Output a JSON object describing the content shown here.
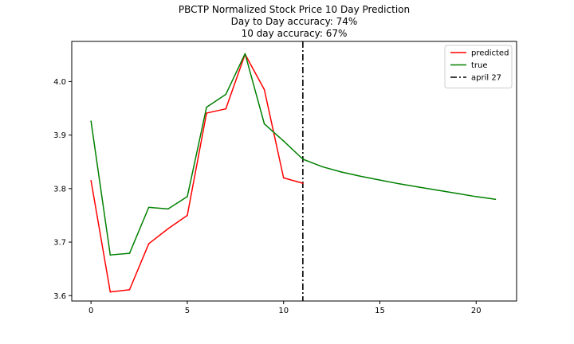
{
  "chart_data": {
    "type": "line",
    "title": [
      "PBCTP Normalized Stock Price 10 Day Prediction",
      "Day to Day accuracy: 74%",
      "10 day accuracy: 67%"
    ],
    "xlabel": "",
    "ylabel": "",
    "xlim": [
      -1,
      22.1
    ],
    "ylim": [
      3.59,
      4.075
    ],
    "xticks": [
      0,
      5,
      10,
      15,
      20
    ],
    "yticks": [
      3.6,
      3.7,
      3.8,
      3.9,
      4.0
    ],
    "xtick_labels": [
      "0",
      "5",
      "10",
      "15",
      "20"
    ],
    "ytick_labels": [
      "3.6",
      "3.7",
      "3.8",
      "3.9",
      "4.0"
    ],
    "grid": false,
    "legend_position": "top-right",
    "series": [
      {
        "name": "predicted",
        "color": "#ff0000",
        "style": "solid",
        "x": [
          0,
          1,
          2,
          3,
          4,
          5,
          6,
          7,
          8,
          9,
          10,
          11
        ],
        "y": [
          3.815,
          3.607,
          3.611,
          3.697,
          3.725,
          3.75,
          3.941,
          3.949,
          4.051,
          3.985,
          3.82,
          3.81
        ]
      },
      {
        "name": "true",
        "color": "#008000",
        "style": "solid",
        "x": [
          0,
          1,
          2,
          3,
          4,
          5,
          6,
          7,
          8,
          9,
          10,
          11,
          12,
          13,
          14,
          15,
          16,
          17,
          18,
          19,
          20,
          21
        ],
        "y": [
          3.926,
          3.676,
          3.679,
          3.765,
          3.762,
          3.785,
          3.952,
          3.976,
          4.052,
          3.921,
          3.889,
          3.855,
          3.841,
          3.831,
          3.823,
          3.816,
          3.809,
          3.803,
          3.797,
          3.791,
          3.785,
          3.78
        ]
      }
    ],
    "vlines": [
      {
        "name": "april 27",
        "x": 11,
        "color": "#000000",
        "style": "dashdot"
      }
    ]
  }
}
